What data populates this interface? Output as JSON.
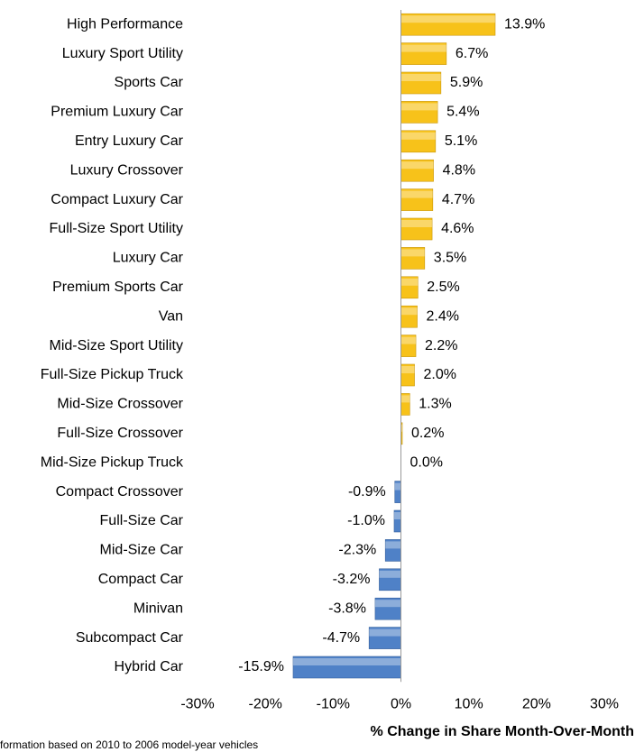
{
  "chart_data": {
    "type": "hbar",
    "categories": [
      "High Performance",
      "Luxury Sport Utility",
      "Sports Car",
      "Premium Luxury Car",
      "Entry Luxury Car",
      "Luxury Crossover",
      "Compact Luxury Car",
      "Full-Size Sport Utility",
      "Luxury Car",
      "Premium Sports Car",
      "Van",
      "Mid-Size Sport Utility",
      "Full-Size Pickup Truck",
      "Mid-Size Crossover",
      "Full-Size Crossover",
      "Mid-Size Pickup Truck",
      "Compact Crossover",
      "Full-Size Car",
      "Mid-Size Car",
      "Compact Car",
      "Minivan",
      "Subcompact Car",
      "Hybrid Car"
    ],
    "values": [
      13.9,
      6.7,
      5.9,
      5.4,
      5.1,
      4.8,
      4.7,
      4.6,
      3.5,
      2.5,
      2.4,
      2.2,
      2.0,
      1.3,
      0.2,
      0.0,
      -0.9,
      -1.0,
      -2.3,
      -3.2,
      -3.8,
      -4.7,
      -15.9
    ],
    "value_labels": [
      "13.9%",
      "6.7%",
      "5.9%",
      "5.4%",
      "5.1%",
      "4.8%",
      "4.7%",
      "4.6%",
      "3.5%",
      "2.5%",
      "2.4%",
      "2.2%",
      "2.0%",
      "1.3%",
      "0.2%",
      "0.0%",
      "-0.9%",
      "-1.0%",
      "-2.3%",
      "-3.2%",
      "-3.8%",
      "-4.7%",
      "-15.9%"
    ],
    "positive_color": "#f7c21a",
    "negative_color": "#4f81c7",
    "xlim": [
      -30,
      30
    ],
    "xticks": [
      {
        "value": -30,
        "label": "-30%"
      },
      {
        "value": -20,
        "label": "-20%"
      },
      {
        "value": -10,
        "label": "-10%"
      },
      {
        "value": 0,
        "label": "0%"
      },
      {
        "value": 10,
        "label": "10%"
      },
      {
        "value": 20,
        "label": "20%"
      },
      {
        "value": 30,
        "label": "30%"
      }
    ],
    "x_label": "% Change in Share Month-Over-Month",
    "footnote": "formation based  on 2010 to 2006 model-year vehicles"
  }
}
